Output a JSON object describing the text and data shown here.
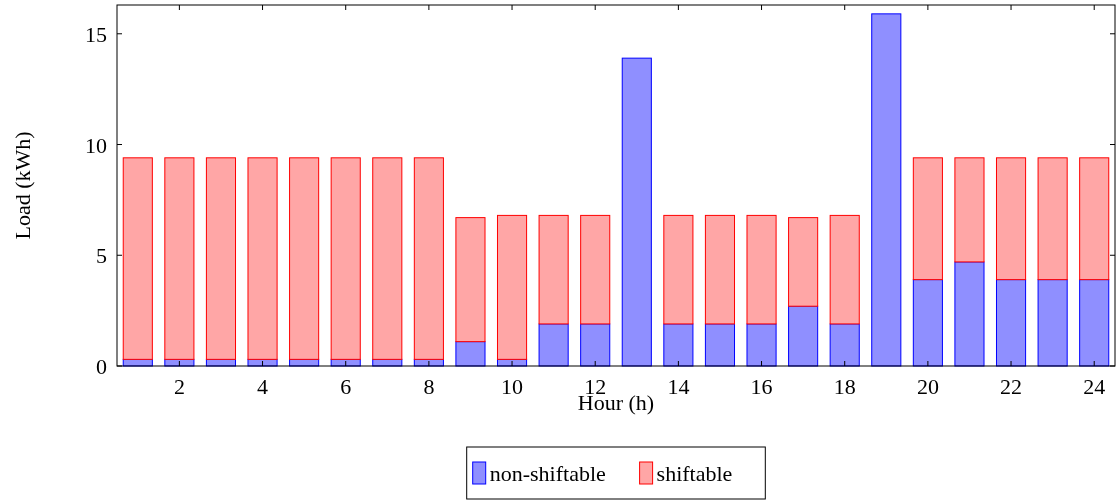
{
  "chart_data": {
    "type": "bar",
    "stacked": true,
    "xlabel": "Hour (h)",
    "ylabel": "Load (kWh)",
    "x": [
      1,
      2,
      3,
      4,
      5,
      6,
      7,
      8,
      9,
      10,
      11,
      12,
      13,
      14,
      15,
      16,
      17,
      18,
      19,
      20,
      21,
      22,
      23,
      24
    ],
    "xlim": [
      0.5,
      24.5
    ],
    "xticks": [
      2,
      4,
      6,
      8,
      10,
      12,
      14,
      16,
      18,
      20,
      22,
      24
    ],
    "ylim": [
      0,
      16.3
    ],
    "yticks": [
      0,
      5,
      10,
      15
    ],
    "grid": false,
    "legend": "bottom",
    "series": [
      {
        "name": "non-shiftable",
        "color": "#8f8fff",
        "values": [
          0.3,
          0.3,
          0.3,
          0.3,
          0.3,
          0.3,
          0.3,
          0.3,
          1.1,
          0.3,
          1.9,
          1.9,
          13.9,
          1.9,
          1.9,
          1.9,
          2.7,
          1.9,
          15.9,
          3.9,
          4.7,
          3.9,
          3.9,
          3.9
        ]
      },
      {
        "name": "shiftable",
        "color": "#ffa6a6",
        "values": [
          9.1,
          9.1,
          9.1,
          9.1,
          9.1,
          9.1,
          9.1,
          9.1,
          5.6,
          6.5,
          4.9,
          4.9,
          0,
          4.9,
          4.9,
          4.9,
          4.0,
          4.9,
          0,
          5.5,
          4.7,
          5.5,
          5.5,
          5.5
        ]
      }
    ]
  }
}
